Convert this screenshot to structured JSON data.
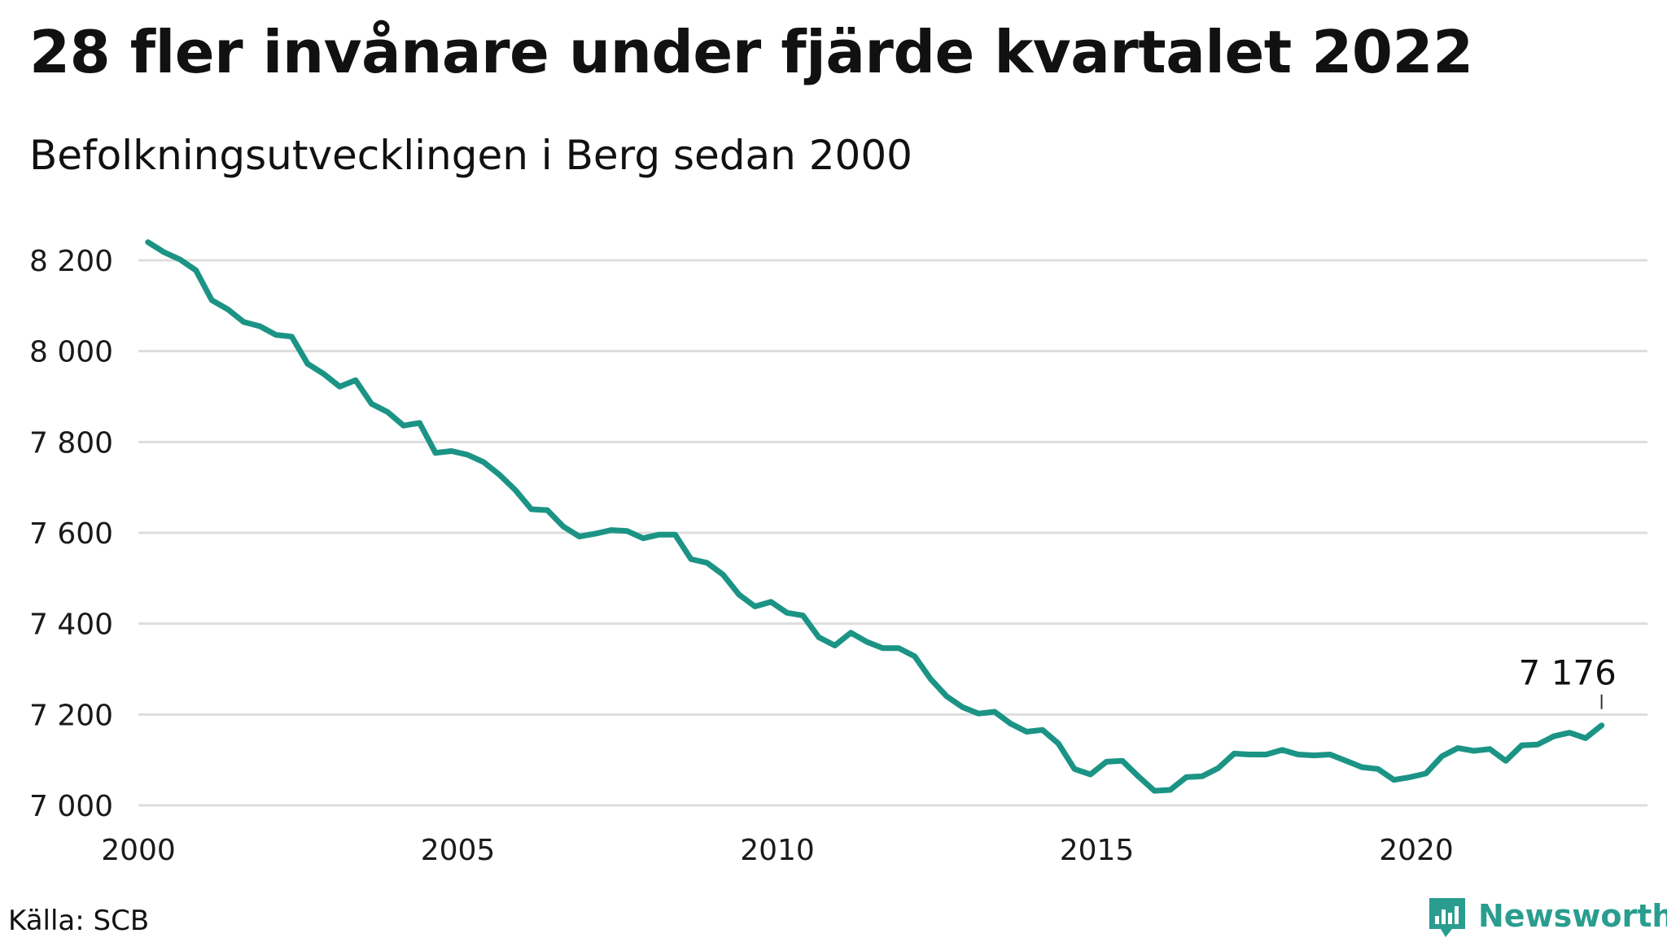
{
  "header": {
    "title": "28 fler invånare under fjärde kvartalet 2022",
    "subtitle": "Befolkningsutvecklingen i Berg sedan 2000"
  },
  "footer": {
    "source": "Källa: SCB",
    "brand": "Newsworthy"
  },
  "colors": {
    "line": "#1b9485",
    "grid": "#dddddd",
    "brand": "#2a9d8f"
  },
  "chart_data": {
    "type": "line",
    "title": "28 fler invånare under fjärde kvartalet 2022",
    "subtitle": "Befolkningsutvecklingen i Berg sedan 2000",
    "xlabel": "",
    "ylabel": "",
    "x_range": [
      2000,
      2023.5
    ],
    "ylim": [
      7000,
      8250
    ],
    "y_ticks": [
      7000,
      7200,
      7400,
      7600,
      7800,
      8000,
      8200
    ],
    "y_tick_labels": [
      "7 000",
      "7 200",
      "7 400",
      "7 600",
      "7 800",
      "8 000",
      "8 200"
    ],
    "x_ticks": [
      2000,
      2005,
      2010,
      2015,
      2020
    ],
    "x_tick_labels": [
      "2000",
      "2005",
      "2010",
      "2015",
      "2020"
    ],
    "grid": true,
    "legend": "none",
    "series": [
      {
        "start_period": "2000 Q1",
        "frequency": "quarterly",
        "values": [
          8240,
          8218,
          8202,
          8178,
          8112,
          8092,
          8064,
          8055,
          8036,
          8032,
          7972,
          7950,
          7922,
          7936,
          7884,
          7866,
          7836,
          7842,
          7776,
          7780,
          7772,
          7756,
          7728,
          7694,
          7652,
          7650,
          7614,
          7592,
          7598,
          7606,
          7604,
          7588,
          7596,
          7596,
          7542,
          7534,
          7508,
          7464,
          7438,
          7448,
          7424,
          7418,
          7370,
          7352,
          7380,
          7360,
          7346,
          7346,
          7328,
          7278,
          7240,
          7216,
          7202,
          7206,
          7180,
          7162,
          7166,
          7136,
          7080,
          7068,
          7096,
          7098,
          7064,
          7032,
          7034,
          7062,
          7064,
          7082,
          7114,
          7112,
          7112,
          7122,
          7112,
          7110,
          7112,
          7098,
          7084,
          7080,
          7056,
          7062,
          7070,
          7108,
          7126,
          7120,
          7124,
          7098,
          7132,
          7134,
          7152,
          7160,
          7148,
          7176
        ]
      }
    ],
    "annotations": [
      {
        "text": "7 176",
        "x": "2022 Q4",
        "y": 7176
      }
    ]
  }
}
